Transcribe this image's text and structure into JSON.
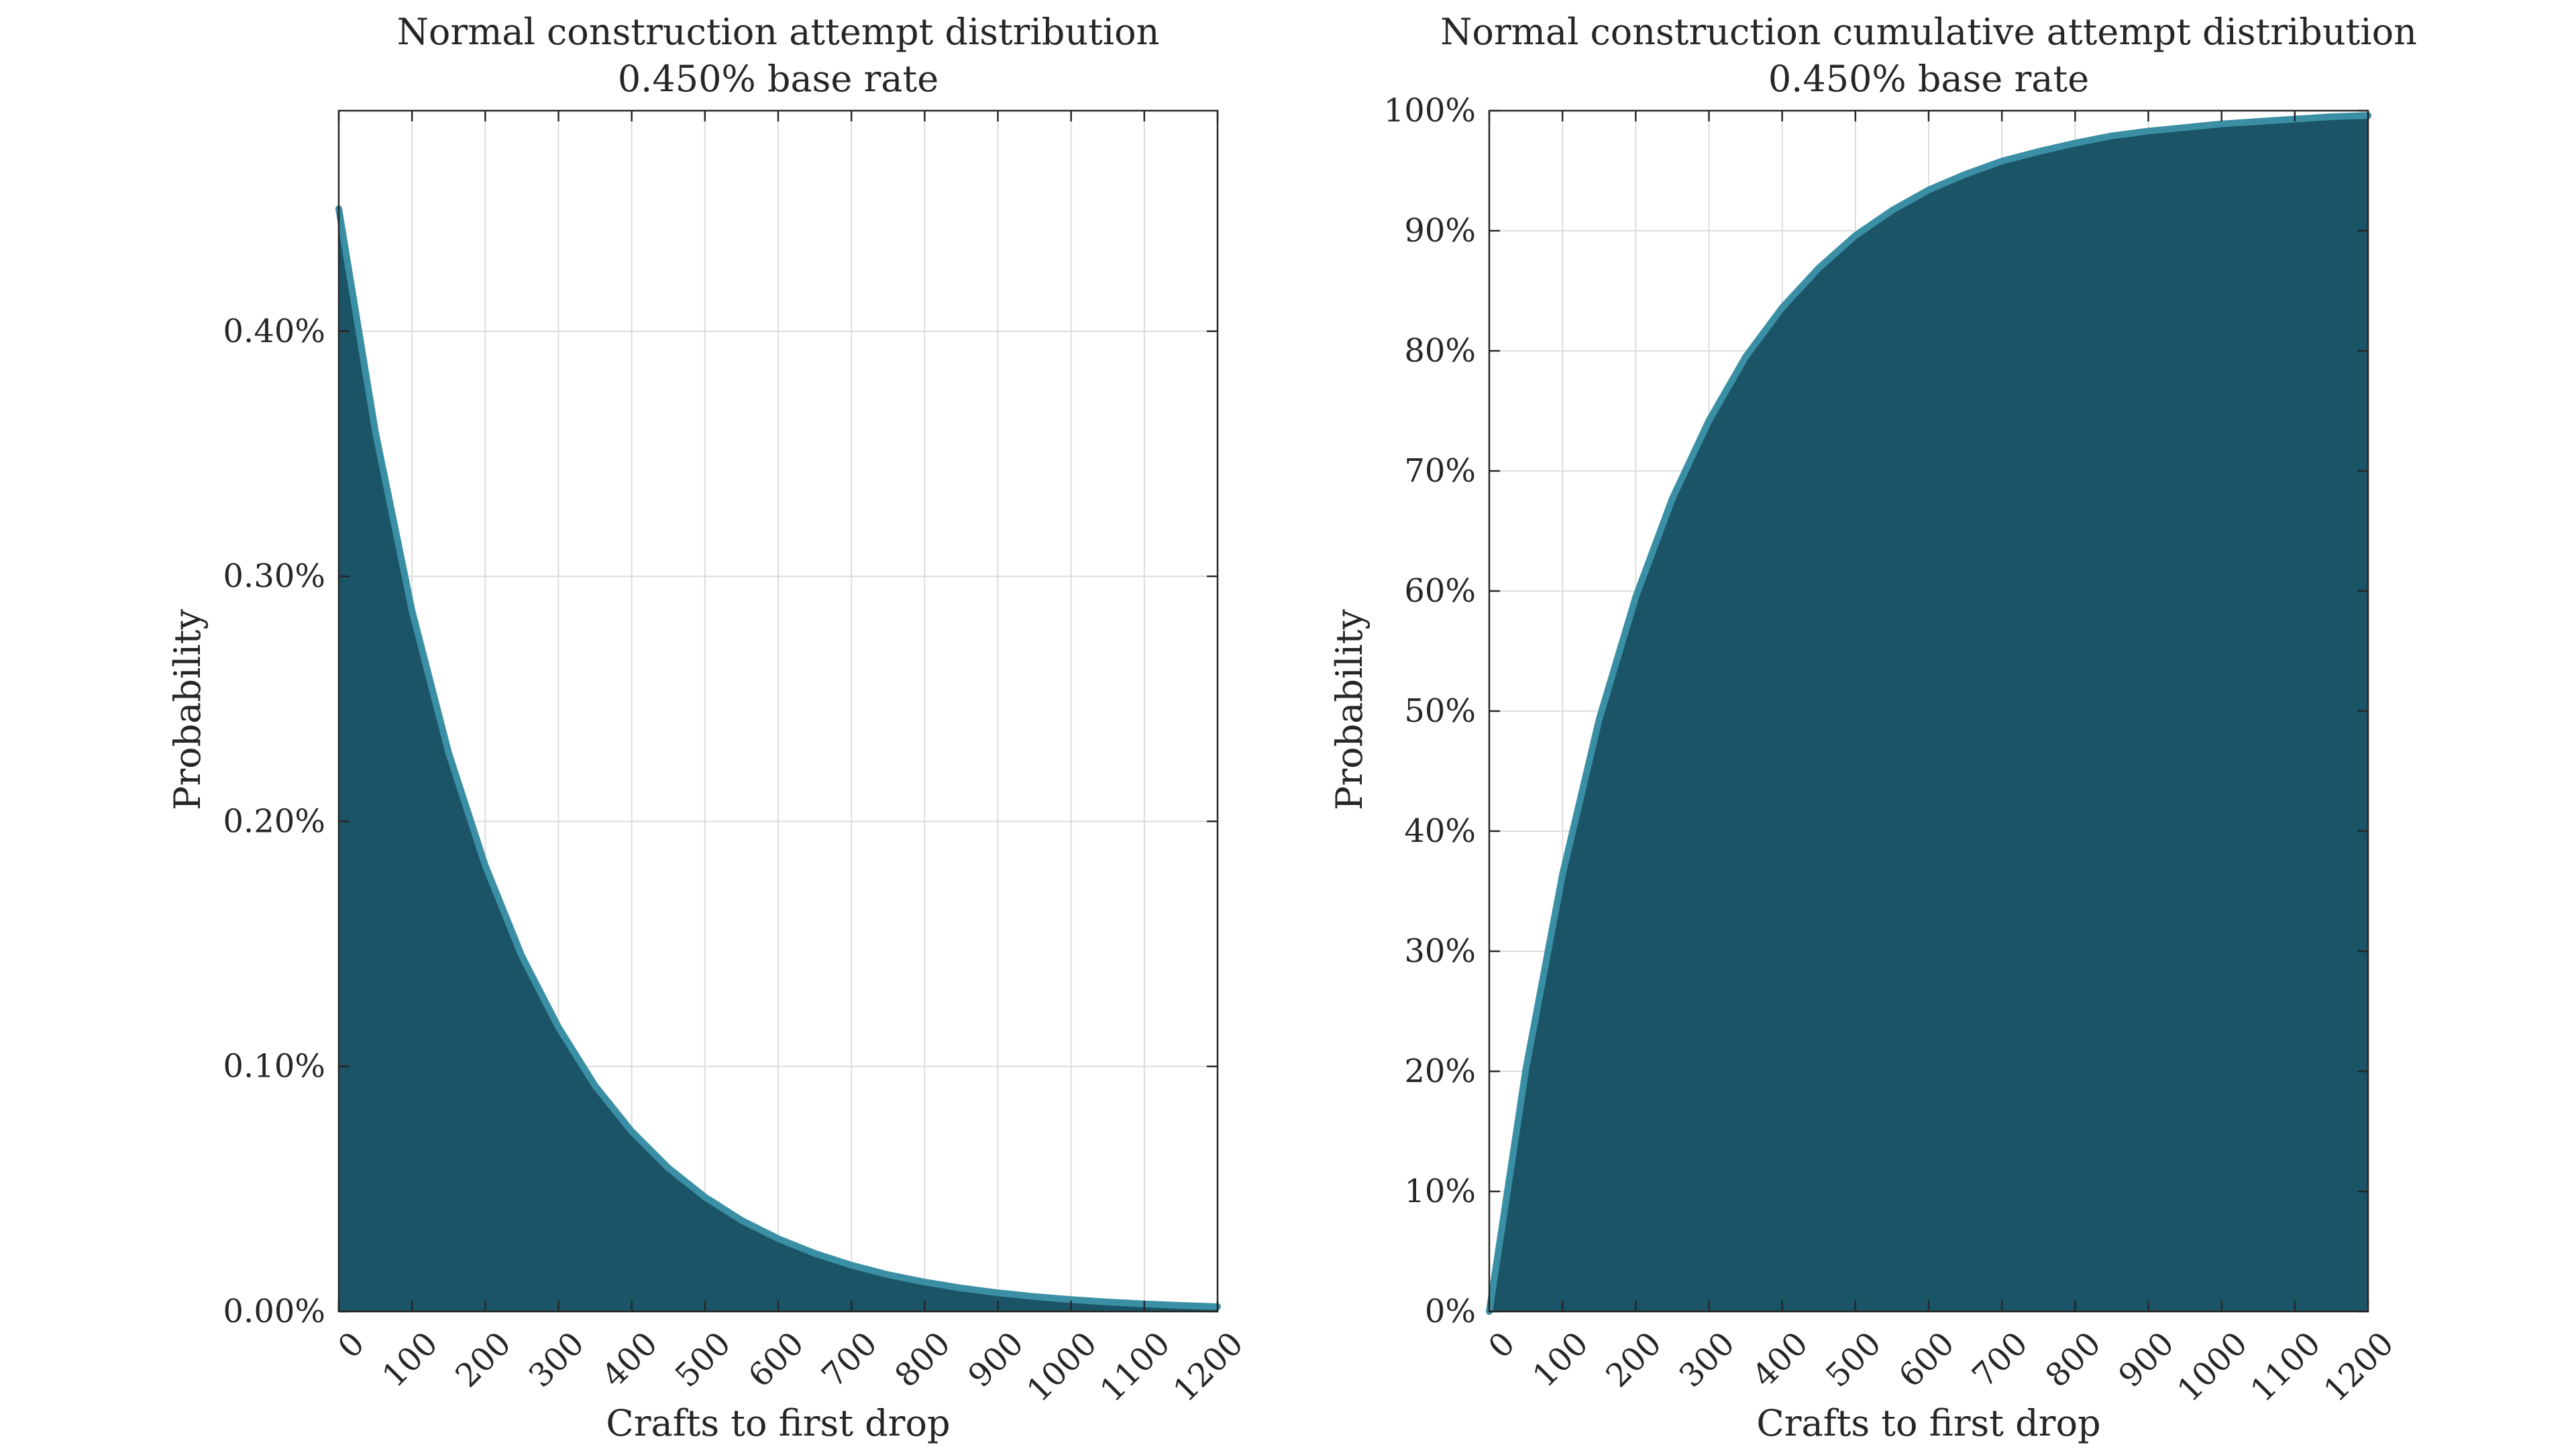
{
  "style": {
    "fill_color": "#1b5466",
    "line_color": "#3a8fa4",
    "grid_color": "#dcdcdc",
    "axis_color": "#262626"
  },
  "chart_data": [
    {
      "type": "area",
      "title_line1": "Normal construction attempt distribution",
      "title_line2": "0.450% base rate",
      "xlabel": "Crafts to first drop",
      "ylabel": "Probability",
      "xlim": [
        0,
        1200
      ],
      "ylim": [
        0,
        0.0049
      ],
      "grid": true,
      "legend": "none",
      "x_ticks": [
        0,
        100,
        200,
        300,
        400,
        500,
        600,
        700,
        800,
        900,
        1000,
        1100,
        1200
      ],
      "y_ticks": [
        0,
        0.001,
        0.002,
        0.003,
        0.004
      ],
      "y_tick_labels": [
        "0.00%",
        "0.10%",
        "0.20%",
        "0.30%",
        "0.40%"
      ],
      "series": [
        {
          "x": [
            0,
            50,
            100,
            150,
            200,
            250,
            300,
            350,
            400,
            450,
            500,
            550,
            600,
            650,
            700,
            750,
            800,
            850,
            900,
            950,
            1000,
            1050,
            1100,
            1150,
            1200
          ],
          "values": [
            0.0045,
            0.00359,
            0.00286,
            0.00228,
            0.00182,
            0.00145,
            0.00116,
            0.000921,
            0.000735,
            0.000586,
            0.000467,
            0.000372,
            0.000297,
            0.000237,
            0.000189,
            0.00015,
            0.00012,
            9.56e-05,
            7.62e-05,
            6.08e-05,
            4.85e-05,
            3.86e-05,
            3.08e-05,
            2.46e-05,
            1.96e-05
          ]
        }
      ]
    },
    {
      "type": "area",
      "title_line1": "Normal construction cumulative attempt distribution",
      "title_line2": "0.450% base rate",
      "xlabel": "Crafts to first drop",
      "ylabel": "Probability",
      "xlim": [
        0,
        1200
      ],
      "ylim": [
        0,
        1
      ],
      "grid": true,
      "legend": "none",
      "x_ticks": [
        0,
        100,
        200,
        300,
        400,
        500,
        600,
        700,
        800,
        900,
        1000,
        1100,
        1200
      ],
      "y_ticks": [
        0,
        0.1,
        0.2,
        0.3,
        0.4,
        0.5,
        0.6,
        0.7,
        0.8,
        0.9,
        1.0
      ],
      "y_tick_labels": [
        "0%",
        "10%",
        "20%",
        "30%",
        "40%",
        "50%",
        "60%",
        "70%",
        "80%",
        "90%",
        "100%"
      ],
      "series": [
        {
          "x": [
            0,
            50,
            100,
            150,
            200,
            250,
            300,
            350,
            400,
            450,
            500,
            550,
            600,
            650,
            700,
            750,
            800,
            850,
            900,
            950,
            1000,
            1050,
            1100,
            1150,
            1200
          ],
          "values": [
            0.0,
            0.202,
            0.364,
            0.493,
            0.595,
            0.677,
            0.742,
            0.795,
            0.836,
            0.869,
            0.896,
            0.917,
            0.934,
            0.947,
            0.958,
            0.966,
            0.973,
            0.979,
            0.983,
            0.986,
            0.989,
            0.991,
            0.993,
            0.995,
            0.996
          ]
        }
      ]
    }
  ]
}
